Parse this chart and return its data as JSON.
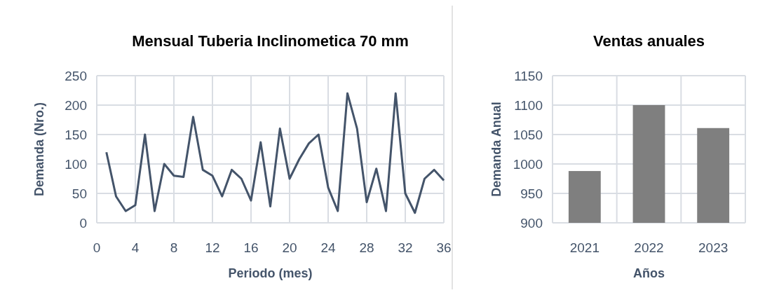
{
  "chart_data": [
    {
      "type": "line",
      "title": "Mensual Tuberia Inclinometica 70 mm",
      "xlabel": "Periodo (mes)",
      "ylabel": "Demanda (Nro.)",
      "x": [
        1,
        2,
        3,
        4,
        5,
        6,
        7,
        8,
        9,
        10,
        11,
        12,
        13,
        14,
        15,
        16,
        17,
        18,
        19,
        20,
        21,
        22,
        23,
        24,
        25,
        26,
        27,
        28,
        29,
        30,
        31,
        32,
        33,
        34,
        35,
        36
      ],
      "series": [
        {
          "color": "#44546a",
          "values": [
            120,
            45,
            20,
            30,
            150,
            20,
            100,
            80,
            78,
            180,
            90,
            80,
            45,
            90,
            75,
            38,
            137,
            28,
            160,
            75,
            108,
            135,
            150,
            60,
            20,
            220,
            160,
            35,
            92,
            20,
            220,
            50,
            17,
            75,
            90,
            72
          ]
        }
      ],
      "xlim": [
        0,
        36
      ],
      "xticks": [
        0,
        4,
        8,
        12,
        16,
        20,
        24,
        28,
        32,
        36
      ],
      "ylim": [
        0,
        250
      ],
      "yticks": [
        0,
        50,
        100,
        150,
        200,
        250
      ],
      "grid": true
    },
    {
      "type": "bar",
      "title": "Ventas anuales",
      "xlabel": "Años",
      "ylabel": "Demanda Anual",
      "categories": [
        "2021",
        "2022",
        "2023"
      ],
      "series": [
        {
          "color": "#7f7f7f",
          "values": [
            988,
            1100,
            1061
          ]
        }
      ],
      "ylim": [
        900,
        1150
      ],
      "yticks": [
        900,
        950,
        1000,
        1050,
        1100,
        1150
      ],
      "grid": true
    }
  ]
}
